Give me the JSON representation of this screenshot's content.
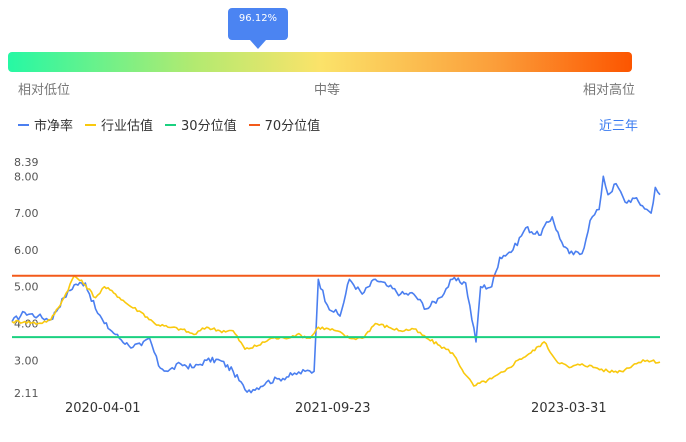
{
  "gauge": {
    "value_label": "96.12%",
    "low_label": "相对低位",
    "mid_label": "中等",
    "high_label": "相对高位"
  },
  "legend": [
    {
      "name": "市净率",
      "color": "#4b7ff0"
    },
    {
      "name": "行业估值",
      "color": "#f9c90e"
    },
    {
      "name": "30分位值",
      "color": "#1bd180"
    },
    {
      "name": "70分位值",
      "color": "#f35a1a"
    }
  ],
  "period_label": "近三年",
  "chart_data": {
    "type": "line",
    "y_ticks": [
      "8.39",
      "8.00",
      "7.00",
      "6.00",
      "5.00",
      "4.00",
      "3.00",
      "2.11"
    ],
    "ylim": [
      2.11,
      8.39
    ],
    "x_ticks": [
      "2020-04-01",
      "2021-09-23",
      "2023-03-31"
    ],
    "xlim": [
      "2019-09-01",
      "2023-10-31"
    ],
    "series": [
      {
        "name": "市净率",
        "color": "#4b7ff0",
        "points": [
          [
            "2019-09-01",
            4.05
          ],
          [
            "2019-10-01",
            4.3
          ],
          [
            "2019-11-01",
            4.2
          ],
          [
            "2019-12-01",
            4.1
          ],
          [
            "2020-01-01",
            4.7
          ],
          [
            "2020-01-25",
            5.05
          ],
          [
            "2020-02-20",
            5.1
          ],
          [
            "2020-03-15",
            4.4
          ],
          [
            "2020-04-05",
            4.0
          ],
          [
            "2020-05-01",
            3.7
          ],
          [
            "2020-06-01",
            3.4
          ],
          [
            "2020-07-01",
            3.4
          ],
          [
            "2020-07-20",
            3.6
          ],
          [
            "2020-08-10",
            2.85
          ],
          [
            "2020-09-01",
            2.7
          ],
          [
            "2020-10-01",
            2.9
          ],
          [
            "2020-11-01",
            2.8
          ],
          [
            "2020-12-01",
            3.0
          ],
          [
            "2021-01-01",
            3.0
          ],
          [
            "2021-02-01",
            2.7
          ],
          [
            "2021-03-01",
            2.2
          ],
          [
            "2021-03-20",
            2.2
          ],
          [
            "2021-04-20",
            2.4
          ],
          [
            "2021-05-20",
            2.5
          ],
          [
            "2021-06-20",
            2.6
          ],
          [
            "2021-07-20",
            2.7
          ],
          [
            "2021-08-10",
            2.7
          ],
          [
            "2021-08-20",
            5.2
          ],
          [
            "2021-09-10",
            4.5
          ],
          [
            "2021-10-10",
            4.2
          ],
          [
            "2021-11-01",
            5.2
          ],
          [
            "2021-12-01",
            4.8
          ],
          [
            "2022-01-01",
            5.2
          ],
          [
            "2022-02-01",
            5.0
          ],
          [
            "2022-03-01",
            4.8
          ],
          [
            "2022-04-01",
            4.8
          ],
          [
            "2022-05-01",
            4.4
          ],
          [
            "2022-06-01",
            4.7
          ],
          [
            "2022-07-01",
            5.2
          ],
          [
            "2022-08-01",
            5.1
          ],
          [
            "2022-08-25",
            3.5
          ],
          [
            "2022-09-05",
            5.0
          ],
          [
            "2022-10-01",
            5.0
          ],
          [
            "2022-10-20",
            5.8
          ],
          [
            "2022-11-20",
            6.0
          ],
          [
            "2022-12-20",
            6.6
          ],
          [
            "2023-01-20",
            6.4
          ],
          [
            "2023-02-20",
            6.9
          ],
          [
            "2023-03-10",
            6.3
          ],
          [
            "2023-04-01",
            5.9
          ],
          [
            "2023-05-01",
            5.9
          ],
          [
            "2023-05-20",
            6.8
          ],
          [
            "2023-06-10",
            7.1
          ],
          [
            "2023-06-20",
            8.0
          ],
          [
            "2023-07-01",
            7.5
          ],
          [
            "2023-07-20",
            7.8
          ],
          [
            "2023-08-10",
            7.3
          ],
          [
            "2023-09-01",
            7.4
          ],
          [
            "2023-09-20",
            7.2
          ],
          [
            "2023-10-10",
            7.0
          ],
          [
            "2023-10-20",
            7.7
          ],
          [
            "2023-10-31",
            7.5
          ]
        ]
      },
      {
        "name": "行业估值",
        "color": "#f9c90e",
        "points": [
          [
            "2019-09-01",
            4.05
          ],
          [
            "2019-10-01",
            4.05
          ],
          [
            "2019-11-01",
            4.0
          ],
          [
            "2019-12-01",
            4.1
          ],
          [
            "2020-01-01",
            4.7
          ],
          [
            "2020-01-25",
            5.3
          ],
          [
            "2020-02-20",
            5.05
          ],
          [
            "2020-03-15",
            4.7
          ],
          [
            "2020-04-05",
            5.0
          ],
          [
            "2020-05-01",
            4.8
          ],
          [
            "2020-06-01",
            4.5
          ],
          [
            "2020-07-01",
            4.3
          ],
          [
            "2020-08-01",
            4.0
          ],
          [
            "2020-09-01",
            3.9
          ],
          [
            "2020-10-01",
            3.85
          ],
          [
            "2020-11-01",
            3.7
          ],
          [
            "2020-12-01",
            3.9
          ],
          [
            "2021-01-01",
            3.8
          ],
          [
            "2021-02-01",
            3.8
          ],
          [
            "2021-03-01",
            3.3
          ],
          [
            "2021-04-01",
            3.4
          ],
          [
            "2021-05-01",
            3.6
          ],
          [
            "2021-06-01",
            3.6
          ],
          [
            "2021-07-01",
            3.7
          ],
          [
            "2021-08-01",
            3.6
          ],
          [
            "2021-08-20",
            3.9
          ],
          [
            "2021-10-01",
            3.8
          ],
          [
            "2021-11-01",
            3.6
          ],
          [
            "2021-12-01",
            3.6
          ],
          [
            "2022-01-01",
            4.0
          ],
          [
            "2022-02-01",
            3.9
          ],
          [
            "2022-03-01",
            3.8
          ],
          [
            "2022-04-01",
            3.85
          ],
          [
            "2022-05-01",
            3.6
          ],
          [
            "2022-06-01",
            3.4
          ],
          [
            "2022-07-01",
            3.2
          ],
          [
            "2022-08-01",
            2.6
          ],
          [
            "2022-08-20",
            2.3
          ],
          [
            "2022-10-01",
            2.5
          ],
          [
            "2022-11-01",
            2.7
          ],
          [
            "2022-12-01",
            3.0
          ],
          [
            "2023-01-01",
            3.2
          ],
          [
            "2023-02-01",
            3.5
          ],
          [
            "2023-03-01",
            3.0
          ],
          [
            "2023-04-01",
            2.8
          ],
          [
            "2023-05-01",
            2.9
          ],
          [
            "2023-06-01",
            2.8
          ],
          [
            "2023-07-01",
            2.7
          ],
          [
            "2023-08-01",
            2.7
          ],
          [
            "2023-09-01",
            2.9
          ],
          [
            "2023-10-01",
            3.0
          ],
          [
            "2023-10-31",
            2.95
          ]
        ]
      },
      {
        "name": "30分位值",
        "color": "#1bd180",
        "points": [
          [
            "2019-09-01",
            3.63
          ],
          [
            "2023-10-31",
            3.63
          ]
        ]
      },
      {
        "name": "70分位值",
        "color": "#f35a1a",
        "points": [
          [
            "2019-09-01",
            5.3
          ],
          [
            "2023-10-31",
            5.3
          ]
        ]
      }
    ]
  }
}
